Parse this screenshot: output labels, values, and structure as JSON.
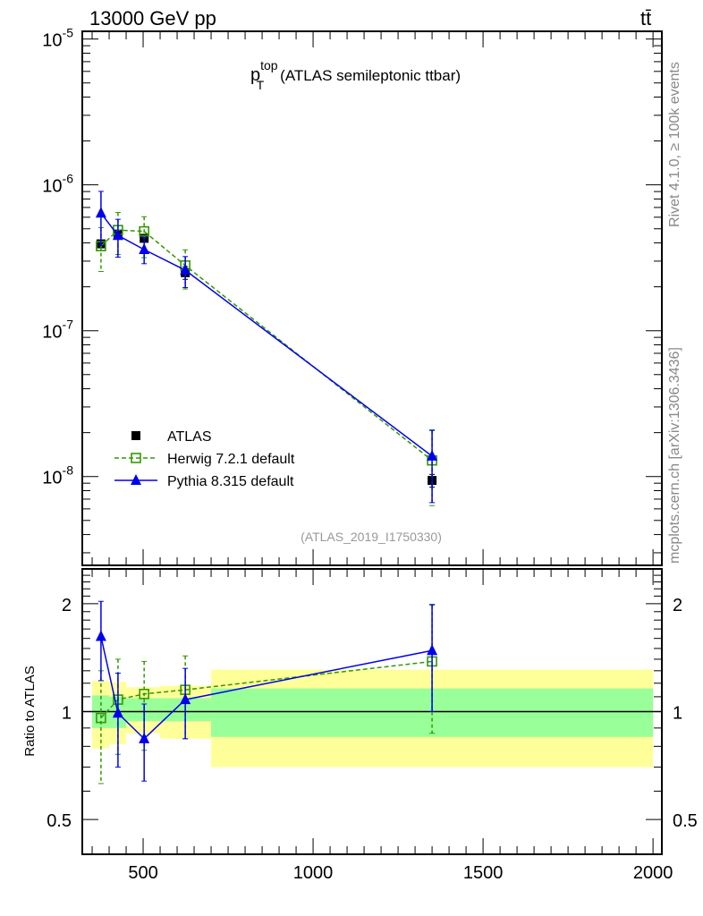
{
  "header": {
    "left": "13000 GeV pp",
    "right": "tt̄"
  },
  "side": {
    "rivet": "Rivet 4.1.0, ≥ 100k events",
    "mcplots": "mcplots.cern.ch [arXiv:1306.3436]"
  },
  "chart_data": [
    {
      "type": "line",
      "title_main": "p",
      "title_sup": "top",
      "title_sub": "T",
      "title_rest": "(ATLAS semileptonic ttbar)",
      "analysis": "(ATLAS_2019_I1750330)",
      "yscale": "log",
      "ylim": [
        2.46e-09,
        1.13e-05
      ],
      "xlim": [
        321,
        2026
      ],
      "ytick_labels": [
        {
          "v": 1e-05,
          "b": "10",
          "e": "-5"
        },
        {
          "v": 1e-06,
          "b": "10",
          "e": "-6"
        },
        {
          "v": 1e-07,
          "b": "10",
          "e": "-7"
        },
        {
          "v": 1e-08,
          "b": "10",
          "e": "-8"
        }
      ],
      "legend_placement": "lower-left",
      "series": [
        {
          "name": "ATLAS",
          "color": "#000000",
          "marker": "square",
          "x": [
            376,
            426,
            503,
            624,
            1350
          ],
          "y": [
            3.94e-07,
            4.6e-07,
            4.3e-07,
            2.5e-07,
            9.4e-09
          ],
          "err_rel": [
            0.06,
            0.06,
            0.05,
            0.1,
            0.1
          ]
        },
        {
          "name": "Herwig 7.2.1 default",
          "color": "#339900",
          "marker": "open-square",
          "dashed": true,
          "x": [
            376,
            426,
            503,
            624,
            1350
          ],
          "y": [
            3.8e-07,
            4.9e-07,
            4.8e-07,
            2.8e-07,
            1.29e-08
          ],
          "err_up": [
            0.34,
            0.32,
            0.26,
            0.28,
            0.6
          ],
          "err_dn": [
            0.33,
            0.32,
            0.34,
            0.31,
            0.51
          ]
        },
        {
          "name": "Pythia 8.315 default",
          "color": "#0000ee",
          "marker": "triangle",
          "x": [
            376,
            426,
            503,
            624,
            1350
          ],
          "y": [
            6.4e-07,
            4.5e-07,
            3.6e-07,
            2.6e-07,
            1.38e-08
          ],
          "err_up": [
            0.41,
            0.29,
            0.21,
            0.24,
            0.51
          ],
          "err_dn": [
            0.4,
            0.29,
            0.2,
            0.24,
            0.52
          ]
        }
      ]
    },
    {
      "type": "line",
      "ylabel": "Ratio to ATLAS",
      "yscale": "log",
      "ylim": [
        0.4,
        2.5
      ],
      "xlim": [
        321,
        2026
      ],
      "xticks": [
        500,
        1000,
        1500,
        2000
      ],
      "yticks": [
        {
          "v": 2,
          "l": "2"
        },
        {
          "v": 1,
          "l": "1"
        },
        {
          "v": 0.5,
          "l": "0.5"
        }
      ],
      "bins": [
        [
          350,
          400
        ],
        [
          400,
          450
        ],
        [
          450,
          550
        ],
        [
          550,
          700
        ],
        [
          700,
          2000
        ]
      ],
      "band_stat": [
        [
          0.9,
          1.11
        ],
        [
          0.9,
          1.1
        ],
        [
          0.94,
          1.09
        ],
        [
          0.94,
          1.09
        ],
        [
          0.85,
          1.16
        ]
      ],
      "band_total": [
        [
          0.79,
          1.22
        ],
        [
          0.81,
          1.21
        ],
        [
          0.87,
          1.17
        ],
        [
          0.84,
          1.18
        ],
        [
          0.7,
          1.31
        ]
      ],
      "band_colors": {
        "stat": "#99ff99",
        "total": "#ffff99"
      },
      "series": [
        {
          "name": "Herwig 7.2.1 default",
          "color": "#339900",
          "x": [
            376,
            426,
            503,
            624,
            1350
          ],
          "y": [
            0.96,
            1.08,
            1.12,
            1.15,
            1.38
          ],
          "lo": [
            0.63,
            0.76,
            0.78,
            0.84,
            0.87
          ],
          "hi": [
            1.3,
            1.4,
            1.38,
            1.43,
            1.98
          ]
        },
        {
          "name": "Pythia 8.315 default",
          "color": "#0000ee",
          "x": [
            376,
            426,
            503,
            624,
            1350
          ],
          "y": [
            1.62,
            0.99,
            0.84,
            1.08,
            1.48
          ],
          "lo": [
            1.22,
            0.7,
            0.64,
            0.84,
            1.0
          ],
          "hi": [
            2.03,
            1.28,
            1.05,
            1.32,
            1.99
          ]
        }
      ]
    }
  ]
}
